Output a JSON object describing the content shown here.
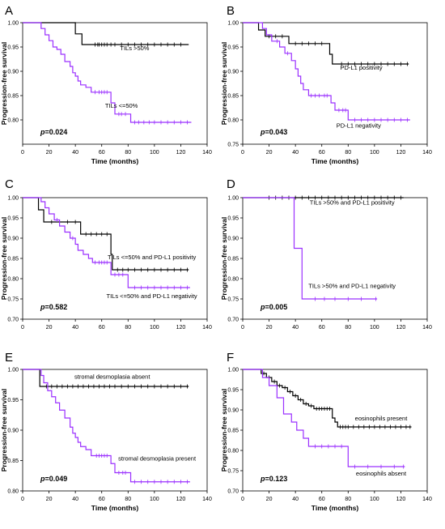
{
  "figure": {
    "panels": [
      "A",
      "B",
      "C",
      "D",
      "E",
      "F"
    ]
  },
  "chart_data": [
    {
      "panel": "A",
      "type": "line",
      "step": true,
      "xlabel": "Time (months)",
      "ylabel": "Progression-free survival",
      "xlim": [
        0,
        140
      ],
      "ylim": [
        0.75,
        1.0
      ],
      "xticks": [
        "0",
        "20",
        "40",
        "60",
        "80",
        "100",
        "120",
        "140"
      ],
      "yticks": [
        "0.80",
        "0.85",
        "0.90",
        "0.95",
        "1.00"
      ],
      "pvalue_label": "p",
      "pvalue_text": "=0.024",
      "series": [
        {
          "name": "TILs >50%",
          "color": "#000000",
          "x": [
            0,
            40,
            45,
            126
          ],
          "y": [
            1.0,
            0.977,
            0.955,
            0.955
          ],
          "censor_x": [
            55,
            57,
            58,
            60,
            62,
            64,
            67,
            70,
            75,
            80,
            85,
            90,
            95,
            100,
            105,
            110,
            115,
            120
          ]
        },
        {
          "name": "TILs <=50%",
          "color": "#9b30ff",
          "x": [
            0,
            14,
            17,
            20,
            23,
            26,
            29,
            32,
            36,
            38,
            40,
            42,
            44,
            48,
            52,
            67,
            70,
            82,
            128
          ],
          "y": [
            1.0,
            0.988,
            0.975,
            0.963,
            0.95,
            0.945,
            0.935,
            0.92,
            0.91,
            0.897,
            0.89,
            0.88,
            0.872,
            0.867,
            0.857,
            0.835,
            0.812,
            0.795,
            0.795
          ],
          "censor_x": [
            55,
            58,
            60,
            62,
            64,
            73,
            75,
            78,
            85,
            88,
            92,
            96,
            100,
            105,
            110,
            115,
            120,
            125
          ]
        }
      ],
      "labels": [
        {
          "text": "TILs >50%",
          "x": 85,
          "y": 0.943
        },
        {
          "text": "TILs <=50%",
          "x": 75,
          "y": 0.825
        }
      ]
    },
    {
      "panel": "B",
      "type": "line",
      "step": true,
      "xlabel": "Time (months)",
      "ylabel": "Progression-free survival",
      "xlim": [
        0,
        140
      ],
      "ylim": [
        0.75,
        1.0
      ],
      "xticks": [
        "0",
        "20",
        "40",
        "60",
        "80",
        "100",
        "120",
        "140"
      ],
      "yticks": [
        "0.75",
        "0.80",
        "0.85",
        "0.90",
        "0.95",
        "1.00"
      ],
      "pvalue_label": "p",
      "pvalue_text": "=0.043",
      "series": [
        {
          "name": "PD-L1 positivity",
          "color": "#000000",
          "x": [
            0,
            12,
            17,
            35,
            66,
            68,
            126
          ],
          "y": [
            1.0,
            0.985,
            0.972,
            0.957,
            0.935,
            0.915,
            0.915
          ],
          "censor_x": [
            20,
            25,
            30,
            40,
            45,
            50,
            55,
            60,
            75,
            80,
            85,
            90,
            95,
            100,
            105,
            110,
            115,
            120,
            125
          ]
        },
        {
          "name": "PD-L1 negativity",
          "color": "#9b30ff",
          "x": [
            0,
            15,
            18,
            22,
            28,
            32,
            37,
            40,
            42,
            44,
            46,
            50,
            67,
            70,
            80,
            127
          ],
          "y": [
            1.0,
            0.988,
            0.975,
            0.962,
            0.95,
            0.937,
            0.922,
            0.905,
            0.89,
            0.875,
            0.862,
            0.85,
            0.835,
            0.82,
            0.8,
            0.8
          ],
          "censor_x": [
            26,
            34,
            52,
            55,
            58,
            62,
            64,
            73,
            76,
            78,
            85,
            90,
            95,
            100,
            105,
            110,
            115,
            120,
            125
          ]
        }
      ],
      "labels": [
        {
          "text": "PD-L1 positivity",
          "x": 90,
          "y": 0.903
        },
        {
          "text": "PD-L1 negativity",
          "x": 88,
          "y": 0.784
        }
      ]
    },
    {
      "panel": "C",
      "type": "line",
      "step": true,
      "xlabel": "",
      "ylabel": "Progression-free survival",
      "xlim": [
        0,
        140
      ],
      "ylim": [
        0.7,
        1.0
      ],
      "xticks": [
        "0",
        "20",
        "40",
        "60",
        "80",
        "100",
        "120",
        "140"
      ],
      "yticks": [
        "0.70",
        "0.75",
        "0.80",
        "0.85",
        "0.90",
        "0.95",
        "1.00"
      ],
      "pvalue_label": "p",
      "pvalue_text": "=0.582",
      "series": [
        {
          "name": "TILs <=50% and PD-L1 positivity",
          "color": "#000000",
          "x": [
            0,
            12,
            16,
            44,
            67,
            68,
            126
          ],
          "y": [
            1.0,
            0.97,
            0.94,
            0.91,
            0.86,
            0.822,
            0.822
          ],
          "censor_x": [
            22,
            28,
            34,
            40,
            48,
            52,
            56,
            60,
            64,
            72,
            76,
            80,
            85,
            90,
            95,
            100,
            105,
            110,
            115,
            120,
            125
          ]
        },
        {
          "name": "TILs <=50% and PD-L1 negativity",
          "color": "#9b30ff",
          "x": [
            0,
            14,
            17,
            20,
            24,
            28,
            32,
            36,
            40,
            42,
            46,
            50,
            53,
            67,
            80,
            127
          ],
          "y": [
            1.0,
            0.99,
            0.975,
            0.96,
            0.945,
            0.93,
            0.915,
            0.9,
            0.885,
            0.87,
            0.86,
            0.85,
            0.84,
            0.81,
            0.778,
            0.778
          ],
          "censor_x": [
            26,
            38,
            55,
            58,
            60,
            62,
            64,
            70,
            73,
            76,
            85,
            90,
            95,
            100,
            105,
            110,
            115,
            120,
            125
          ]
        }
      ],
      "labels": [
        {
          "text": "TILs <=50% and PD-L1 positivity",
          "x": 98,
          "y": 0.848
        },
        {
          "text": "TILs <=50% and PD-L1 negativity",
          "x": 98,
          "y": 0.752
        }
      ]
    },
    {
      "panel": "D",
      "type": "line",
      "step": true,
      "xlabel": "",
      "ylabel": "Progression-free survival",
      "xlim": [
        0,
        140
      ],
      "ylim": [
        0.7,
        1.0
      ],
      "xticks": [
        "0",
        "20",
        "40",
        "60",
        "80",
        "100",
        "120",
        "140"
      ],
      "yticks": [
        "0.70",
        "0.75",
        "0.80",
        "0.85",
        "0.90",
        "0.95",
        "1.00"
      ],
      "pvalue_label": "p",
      "pvalue_text": "=0.005",
      "series": [
        {
          "name": "TILs >50% and PD-L1 positivity",
          "color": "#000000",
          "x": [
            0,
            122
          ],
          "y": [
            1.0,
            1.0
          ],
          "censor_x": [
            20,
            25,
            30,
            35,
            40,
            45,
            50,
            55,
            60,
            65,
            70,
            75,
            80,
            85,
            90,
            95,
            100,
            105,
            110,
            115,
            120
          ]
        },
        {
          "name": "TILs >50% and PD-L1 negativity",
          "color": "#9b30ff",
          "x": [
            0,
            39,
            45,
            102
          ],
          "y": [
            1.0,
            0.875,
            0.75,
            0.75
          ],
          "censor_x": [
            55,
            62,
            70,
            80,
            90,
            101
          ]
        }
      ],
      "labels": [
        {
          "text": "TILs >50% and PD-L1 positivity",
          "x": 83,
          "y": 0.983
        },
        {
          "text": "TILs >50% and PD-L1 negativity",
          "x": 83,
          "y": 0.777
        }
      ]
    },
    {
      "panel": "E",
      "type": "line",
      "step": true,
      "xlabel": "Time (months)",
      "ylabel": "Progression-free survival",
      "xlim": [
        0,
        140
      ],
      "ylim": [
        0.8,
        1.0
      ],
      "xticks": [
        "0",
        "20",
        "40",
        "60",
        "80",
        "100",
        "120",
        "140"
      ],
      "yticks": [
        "0.80",
        "0.85",
        "0.90",
        "0.95",
        "1.00"
      ],
      "pvalue_label": "p",
      "pvalue_text": "=0.049",
      "series": [
        {
          "name": "stromal desmoplasia absent",
          "color": "#000000",
          "x": [
            0,
            13,
            126
          ],
          "y": [
            1.0,
            0.972,
            0.972
          ],
          "censor_x": [
            18,
            22,
            26,
            30,
            34,
            38,
            42,
            46,
            50,
            54,
            58,
            62,
            66,
            70,
            75,
            80,
            85,
            90,
            95,
            100,
            105,
            110,
            115,
            120,
            125
          ]
        },
        {
          "name": "stromal desmoplasia present",
          "color": "#9b30ff",
          "x": [
            0,
            14,
            16,
            19,
            22,
            25,
            28,
            32,
            36,
            38,
            40,
            42,
            44,
            48,
            52,
            67,
            70,
            82,
            127
          ],
          "y": [
            1.0,
            0.99,
            0.978,
            0.965,
            0.955,
            0.945,
            0.933,
            0.92,
            0.905,
            0.895,
            0.888,
            0.88,
            0.873,
            0.868,
            0.858,
            0.845,
            0.83,
            0.815,
            0.815
          ],
          "censor_x": [
            56,
            58,
            60,
            62,
            64,
            73,
            76,
            78,
            85,
            90,
            95,
            100,
            105,
            110,
            115,
            120,
            125
          ]
        }
      ],
      "labels": [
        {
          "text": "stromal desmoplasia absent",
          "x": 68,
          "y": 0.985
        },
        {
          "text": "stromal desmoplasia present",
          "x": 102,
          "y": 0.85
        }
      ]
    },
    {
      "panel": "F",
      "type": "line",
      "step": true,
      "xlabel": "Time (months)",
      "ylabel": "Progression-free survival",
      "xlim": [
        0,
        140
      ],
      "ylim": [
        0.7,
        1.0
      ],
      "xticks": [
        "0",
        "20",
        "40",
        "60",
        "80",
        "100",
        "120",
        "140"
      ],
      "yticks": [
        "0.70",
        "0.75",
        "0.80",
        "0.85",
        "0.90",
        "0.95",
        "1.00"
      ],
      "pvalue_label": "p",
      "pvalue_text": "=0.123",
      "series": [
        {
          "name": "eosinophils present",
          "color": "#000000",
          "x": [
            0,
            14,
            18,
            22,
            26,
            30,
            34,
            38,
            42,
            46,
            50,
            54,
            68,
            70,
            72,
            128
          ],
          "y": [
            1.0,
            0.99,
            0.98,
            0.97,
            0.96,
            0.955,
            0.945,
            0.935,
            0.925,
            0.915,
            0.91,
            0.903,
            0.88,
            0.87,
            0.858,
            0.858
          ],
          "censor_x": [
            16,
            20,
            24,
            28,
            32,
            36,
            40,
            44,
            48,
            52,
            56,
            58,
            60,
            62,
            64,
            66,
            74,
            76,
            78,
            80,
            84,
            88,
            92,
            96,
            100,
            104,
            108,
            112,
            116,
            120,
            124,
            127
          ]
        },
        {
          "name": "eosinophils absent",
          "color": "#9b30ff",
          "x": [
            0,
            15,
            20,
            26,
            31,
            37,
            41,
            46,
            50,
            80,
            123
          ],
          "y": [
            1.0,
            0.98,
            0.96,
            0.93,
            0.89,
            0.87,
            0.85,
            0.83,
            0.81,
            0.76,
            0.76
          ],
          "censor_x": [
            55,
            60,
            65,
            70,
            75,
            85,
            95,
            105,
            115,
            122
          ]
        }
      ],
      "labels": [
        {
          "text": "eosinophils present",
          "x": 105,
          "y": 0.874
        },
        {
          "text": "eosinophils absent",
          "x": 105,
          "y": 0.738
        }
      ]
    }
  ]
}
